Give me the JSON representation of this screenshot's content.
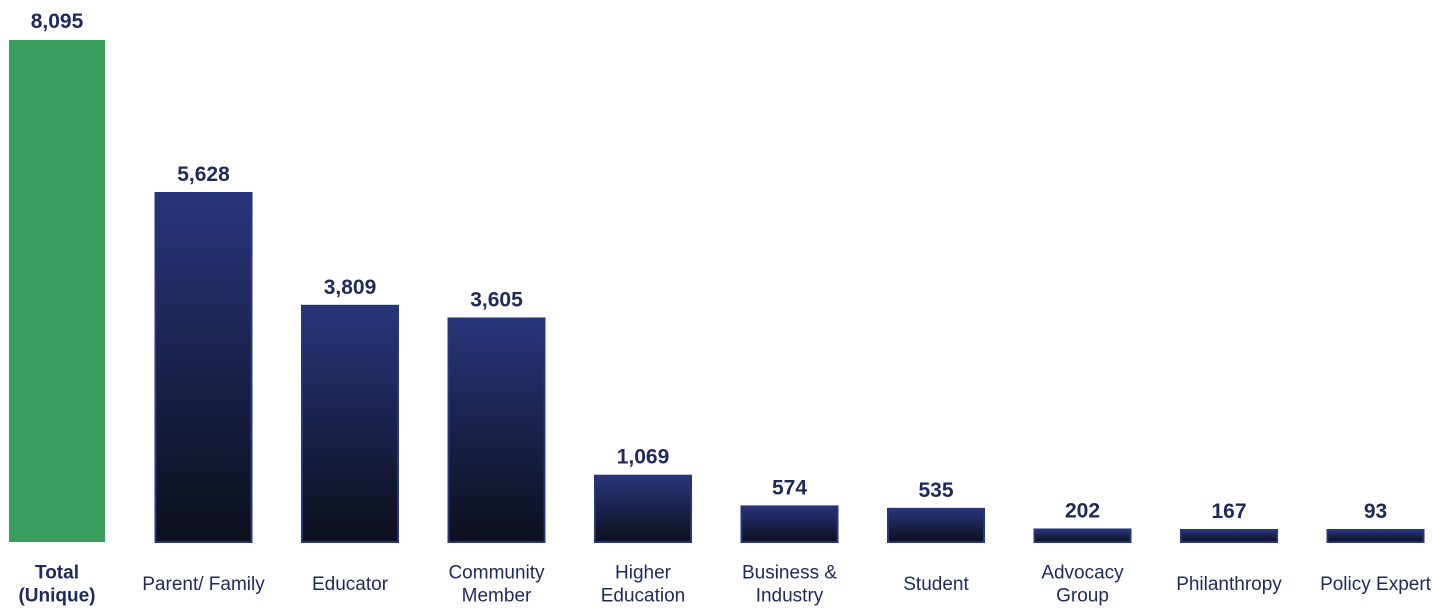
{
  "chart_data": {
    "type": "bar",
    "title": "",
    "xlabel": "",
    "ylabel": "",
    "categories": [
      [
        "Total",
        "(Unique)"
      ],
      [
        "Parent/ Family"
      ],
      [
        "Educator"
      ],
      [
        "Community",
        "Member"
      ],
      [
        "Higher",
        "Education"
      ],
      [
        "Business &",
        "Industry"
      ],
      [
        "Student"
      ],
      [
        "Advocacy",
        "Group"
      ],
      [
        "Philanthropy"
      ],
      [
        "Policy Expert"
      ]
    ],
    "values": [
      8095,
      5628,
      3809,
      3605,
      1069,
      574,
      535,
      202,
      167,
      93
    ],
    "value_labels": [
      "8,095",
      "5,628",
      "3,809",
      "3,605",
      "1,069",
      "574",
      "535",
      "202",
      "167",
      "93"
    ],
    "ylim": [
      0,
      8095
    ],
    "grid": false,
    "legend": "none",
    "colors": {
      "highlight": "#3a9e5f",
      "bar_top": "#27357a",
      "bar_bottom": "#0c0f1c",
      "text": "#1f2a5c"
    }
  }
}
